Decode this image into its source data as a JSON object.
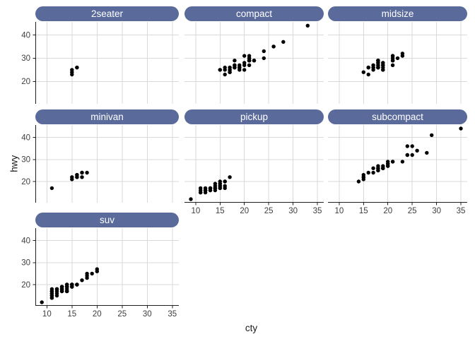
{
  "chart_data": {
    "type": "scatter",
    "title": "",
    "xlabel": "cty",
    "ylabel": "hwy",
    "faceted_by": "class",
    "legend": "none",
    "grid": "major-only",
    "x_breaks": [
      10,
      15,
      20,
      25,
      30,
      35
    ],
    "y_breaks": [
      20,
      30,
      40
    ],
    "xlim": [
      7.7,
      36.3
    ],
    "ylim": [
      10.4,
      45.6
    ],
    "point_radius": 2.7,
    "colors": {
      "strip_fill": "#5a6b9b",
      "strip_text": "#ffffff",
      "grid": "#d9d9d9",
      "axis_line": "#1f1f1f",
      "tick_text": "#3d3d3d",
      "point": "#000000",
      "background": "#ffffff"
    },
    "facets": [
      {
        "label": "2seater",
        "points": [
          [
            15,
            23
          ],
          [
            15,
            24
          ],
          [
            15,
            25
          ],
          [
            16,
            26
          ],
          [
            16,
            26
          ]
        ]
      },
      {
        "label": "compact",
        "points": [
          [
            18,
            29
          ],
          [
            21,
            29
          ],
          [
            20,
            31
          ],
          [
            21,
            30
          ],
          [
            16,
            26
          ],
          [
            18,
            26
          ],
          [
            18,
            27
          ],
          [
            18,
            26
          ],
          [
            16,
            25
          ],
          [
            20,
            28
          ],
          [
            19,
            27
          ],
          [
            15,
            25
          ],
          [
            17,
            25
          ],
          [
            17,
            25
          ],
          [
            15,
            25
          ],
          [
            21,
            27
          ],
          [
            21,
            29
          ],
          [
            21,
            31
          ],
          [
            18,
            26
          ],
          [
            18,
            26
          ],
          [
            18,
            27
          ],
          [
            17,
            26
          ],
          [
            24,
            30
          ],
          [
            24,
            33
          ],
          [
            26,
            35
          ],
          [
            26,
            35
          ],
          [
            28,
            37
          ],
          [
            21,
            29
          ],
          [
            19,
            26
          ],
          [
            21,
            29
          ],
          [
            22,
            29
          ],
          [
            17,
            24
          ],
          [
            33,
            44
          ],
          [
            21,
            29
          ],
          [
            19,
            26
          ],
          [
            22,
            29
          ],
          [
            21,
            29
          ],
          [
            21,
            30
          ],
          [
            17,
            24
          ],
          [
            16,
            23
          ],
          [
            17,
            26
          ],
          [
            19,
            26
          ],
          [
            19,
            26
          ],
          [
            19,
            26
          ],
          [
            20,
            27
          ],
          [
            20,
            25
          ],
          [
            19,
            25
          ]
        ]
      },
      {
        "label": "midsize",
        "points": [
          [
            15,
            24
          ],
          [
            17,
            25
          ],
          [
            16,
            23
          ],
          [
            19,
            27
          ],
          [
            22,
            30
          ],
          [
            18,
            29
          ],
          [
            18,
            29
          ],
          [
            17,
            26
          ],
          [
            18,
            26
          ],
          [
            18,
            27
          ],
          [
            21,
            30
          ],
          [
            21,
            31
          ],
          [
            18,
            26
          ],
          [
            18,
            26
          ],
          [
            19,
            28
          ],
          [
            21,
            29
          ],
          [
            19,
            27
          ],
          [
            23,
            31
          ],
          [
            23,
            32
          ],
          [
            19,
            27
          ],
          [
            19,
            26
          ],
          [
            18,
            26
          ],
          [
            19,
            25
          ],
          [
            19,
            25
          ],
          [
            17,
            26
          ],
          [
            17,
            27
          ],
          [
            16,
            26
          ],
          [
            18,
            28
          ],
          [
            18,
            28
          ],
          [
            21,
            27
          ],
          [
            21,
            29
          ],
          [
            21,
            31
          ],
          [
            18,
            26
          ],
          [
            18,
            26
          ],
          [
            18,
            27
          ],
          [
            18,
            29
          ],
          [
            16,
            26
          ],
          [
            21,
            29
          ],
          [
            18,
            26
          ],
          [
            19,
            28
          ],
          [
            16,
            26
          ]
        ]
      },
      {
        "label": "minivan",
        "points": [
          [
            18,
            24
          ],
          [
            17,
            24
          ],
          [
            16,
            22
          ],
          [
            16,
            22
          ],
          [
            17,
            22
          ],
          [
            17,
            24
          ],
          [
            11,
            17
          ],
          [
            15,
            22
          ],
          [
            15,
            21
          ],
          [
            16,
            23
          ],
          [
            16,
            23
          ]
        ]
      },
      {
        "label": "pickup",
        "points": [
          [
            9,
            12
          ],
          [
            11,
            15
          ],
          [
            11,
            16
          ],
          [
            11,
            17
          ],
          [
            11,
            15
          ],
          [
            12,
            15
          ],
          [
            12,
            16
          ],
          [
            12,
            16
          ],
          [
            12,
            17
          ],
          [
            13,
            16
          ],
          [
            13,
            17
          ],
          [
            13,
            17
          ],
          [
            13,
            17
          ],
          [
            13,
            16
          ],
          [
            14,
            17
          ],
          [
            14,
            17
          ],
          [
            14,
            17
          ],
          [
            14,
            18
          ],
          [
            14,
            16
          ],
          [
            14,
            19
          ],
          [
            15,
            17
          ],
          [
            15,
            18
          ],
          [
            15,
            19
          ],
          [
            15,
            19
          ],
          [
            15,
            20
          ],
          [
            15,
            18
          ],
          [
            15,
            17
          ],
          [
            16,
            18
          ],
          [
            16,
            20
          ],
          [
            16,
            20
          ],
          [
            16,
            17
          ],
          [
            12,
            16
          ],
          [
            17,
            22
          ]
        ]
      },
      {
        "label": "subcompact",
        "points": [
          [
            28,
            33
          ],
          [
            24,
            32
          ],
          [
            25,
            32
          ],
          [
            23,
            29
          ],
          [
            24,
            36
          ],
          [
            26,
            34
          ],
          [
            25,
            36
          ],
          [
            24,
            32
          ],
          [
            21,
            29
          ],
          [
            18,
            26
          ],
          [
            18,
            27
          ],
          [
            19,
            26
          ],
          [
            19,
            27
          ],
          [
            20,
            27
          ],
          [
            20,
            28
          ],
          [
            17,
            24
          ],
          [
            18,
            26
          ],
          [
            18,
            25
          ],
          [
            15,
            22
          ],
          [
            15,
            23
          ],
          [
            15,
            22
          ],
          [
            17,
            26
          ],
          [
            16,
            24
          ],
          [
            15,
            21
          ],
          [
            14,
            20
          ],
          [
            35,
            44
          ],
          [
            29,
            41
          ],
          [
            21,
            29
          ],
          [
            19,
            26
          ],
          [
            20,
            28
          ],
          [
            20,
            29
          ],
          [
            19,
            26
          ],
          [
            19,
            26
          ],
          [
            18,
            25
          ],
          [
            20,
            27
          ]
        ]
      },
      {
        "label": "suv",
        "points": [
          [
            14,
            20
          ],
          [
            11,
            15
          ],
          [
            14,
            20
          ],
          [
            13,
            17
          ],
          [
            12,
            17
          ],
          [
            11,
            14
          ],
          [
            14,
            19
          ],
          [
            11,
            14
          ],
          [
            14,
            19
          ],
          [
            13,
            17
          ],
          [
            11,
            16
          ],
          [
            13,
            18
          ],
          [
            9,
            12
          ],
          [
            13,
            17
          ],
          [
            12,
            16
          ],
          [
            13,
            18
          ],
          [
            11,
            17
          ],
          [
            11,
            17
          ],
          [
            12,
            18
          ],
          [
            15,
            20
          ],
          [
            13,
            19
          ],
          [
            15,
            20
          ],
          [
            13,
            19
          ],
          [
            14,
            19
          ],
          [
            13,
            17
          ],
          [
            15,
            20
          ],
          [
            16,
            20
          ],
          [
            14,
            17
          ],
          [
            15,
            19
          ],
          [
            14,
            19
          ],
          [
            17,
            22
          ],
          [
            14,
            18
          ],
          [
            15,
            20
          ],
          [
            13,
            19
          ],
          [
            14,
            17
          ],
          [
            13,
            19
          ],
          [
            14,
            17
          ],
          [
            11,
            16
          ],
          [
            11,
            17
          ],
          [
            12,
            18
          ],
          [
            14,
            17
          ],
          [
            15,
            20
          ],
          [
            13,
            17
          ],
          [
            14,
            20
          ],
          [
            18,
            25
          ],
          [
            18,
            24
          ],
          [
            20,
            27
          ],
          [
            19,
            25
          ],
          [
            20,
            26
          ],
          [
            18,
            23
          ],
          [
            15,
            20
          ],
          [
            16,
            20
          ],
          [
            15,
            19
          ],
          [
            14,
            17
          ],
          [
            15,
            20
          ],
          [
            16,
            20
          ],
          [
            11,
            15
          ],
          [
            13,
            18
          ],
          [
            11,
            15
          ],
          [
            11,
            18
          ],
          [
            12,
            15
          ],
          [
            12,
            18
          ]
        ]
      }
    ]
  }
}
